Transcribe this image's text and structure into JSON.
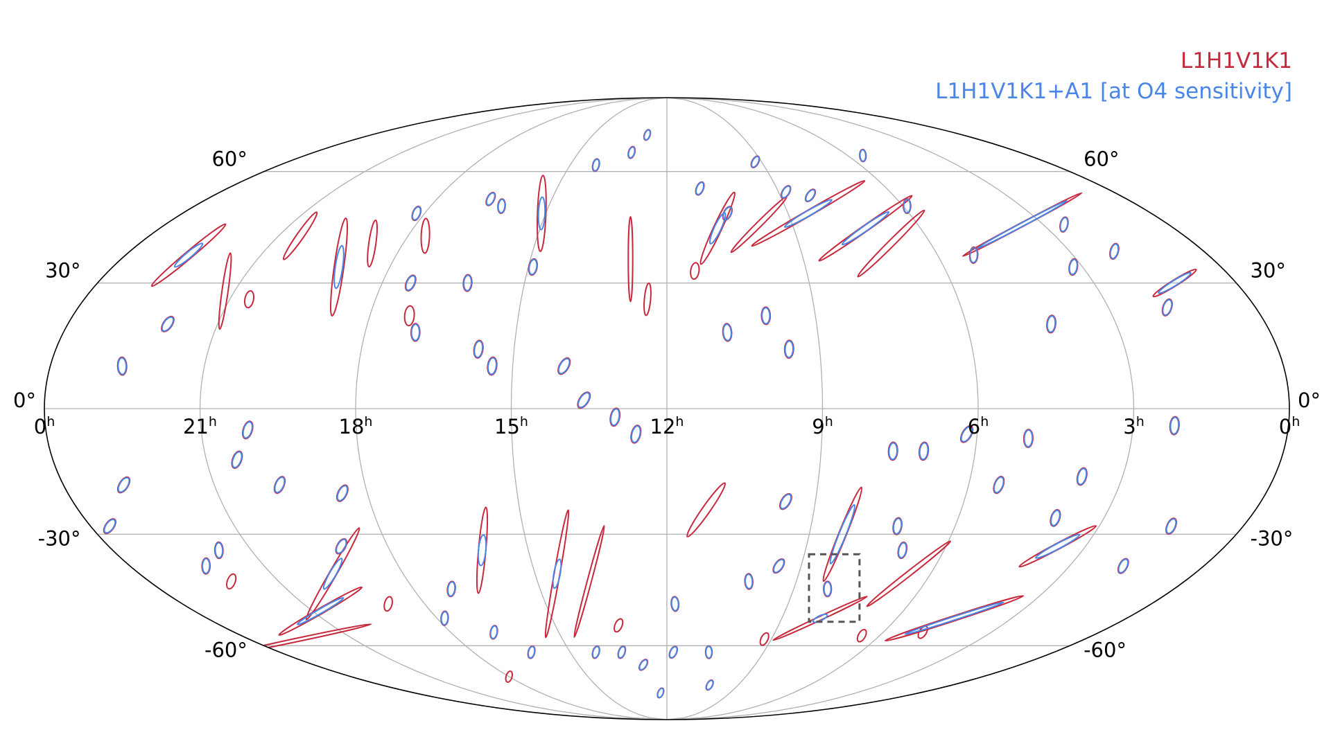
{
  "chart_data": {
    "type": "scatter",
    "projection": "mollweide",
    "title": "",
    "xlabel": "",
    "ylabel": "",
    "legend": {
      "placement": "top-right",
      "entries": [
        {
          "name": "L1H1V1K1",
          "color": "#c8283c"
        },
        {
          "name": "L1H1V1K1+A1 [at O4 sensitivity]",
          "color": "#4a86e8"
        }
      ]
    },
    "grid": true,
    "x_ticks": [
      {
        "hours": 0,
        "label": "0",
        "unit": "h"
      },
      {
        "hours": 3,
        "label": "3",
        "unit": "h"
      },
      {
        "hours": 6,
        "label": "6",
        "unit": "h"
      },
      {
        "hours": 9,
        "label": "9",
        "unit": "h"
      },
      {
        "hours": 12,
        "label": "12",
        "unit": "h"
      },
      {
        "hours": 15,
        "label": "15",
        "unit": "h"
      },
      {
        "hours": 18,
        "label": "18",
        "unit": "h"
      },
      {
        "hours": 21,
        "label": "21",
        "unit": "h"
      },
      {
        "hours": 24,
        "label": "0",
        "unit": "h"
      }
    ],
    "y_ticks": [
      {
        "deg": 60,
        "label": "60°"
      },
      {
        "deg": 30,
        "label": "30°"
      },
      {
        "deg": 0,
        "label": "0°"
      },
      {
        "deg": -30,
        "label": "-30°"
      },
      {
        "deg": -60,
        "label": "-60°"
      }
    ],
    "highlight_box": {
      "ra_hours": [
        6.9,
        8.9
      ],
      "dec_deg": [
        -35,
        -53
      ],
      "style": "dashed"
    },
    "series": [
      {
        "name": "L1H1V1K1",
        "color": "#c8283c",
        "regions": [
          {
            "ra": 22.6,
            "dec": 37,
            "len": 16,
            "wid": 1.0,
            "ang": 40
          },
          {
            "ra": 21.2,
            "dec": 28,
            "len": 12,
            "wid": 0.8,
            "ang": 82
          },
          {
            "ra": 20.5,
            "dec": 42,
            "len": 10,
            "wid": 1.0,
            "ang": 55
          },
          {
            "ra": 19.1,
            "dec": 34,
            "len": 16,
            "wid": 1.3,
            "ang": 82
          },
          {
            "ra": 18.7,
            "dec": 40,
            "len": 8,
            "wid": 1.0,
            "ang": 82
          },
          {
            "ra": 17.6,
            "dec": 42,
            "len": 6,
            "wid": 1.2,
            "ang": 88
          },
          {
            "ra": 17.2,
            "dec": 22,
            "len": 3,
            "wid": 1.2,
            "ang": 85
          },
          {
            "ra": 15.1,
            "dec": 48,
            "len": 14,
            "wid": 1.3,
            "ang": 88
          },
          {
            "ra": 12.8,
            "dec": 36,
            "len": 14,
            "wid": 0.6,
            "ang": 90
          },
          {
            "ra": 12.4,
            "dec": 26,
            "len": 5,
            "wid": 0.8,
            "ang": 85
          },
          {
            "ra": 10.8,
            "dec": 44,
            "len": 14,
            "wid": 1.2,
            "ang": 65
          },
          {
            "ra": 9.8,
            "dec": 45,
            "len": 14,
            "wid": 0.8,
            "ang": 45
          },
          {
            "ra": 8.5,
            "dec": 48,
            "len": 24,
            "wid": 0.9,
            "ang": 30
          },
          {
            "ra": 7.3,
            "dec": 44,
            "len": 20,
            "wid": 0.9,
            "ang": 35
          },
          {
            "ra": 6.9,
            "dec": 40,
            "len": 16,
            "wid": 0.9,
            "ang": 45
          },
          {
            "ra": 3.5,
            "dec": 45,
            "len": 24,
            "wid": 0.6,
            "ang": 28
          },
          {
            "ra": 1.3,
            "dec": 30,
            "len": 8,
            "wid": 0.8,
            "ang": 32
          },
          {
            "ra": 3.6,
            "dec": -33,
            "len": 14,
            "wid": 0.8,
            "ang": 28
          },
          {
            "ra": 4.5,
            "dec": -52,
            "len": 28,
            "wid": 0.8,
            "ang": 18
          },
          {
            "ra": 6.5,
            "dec": -40,
            "len": 18,
            "wid": 0.7,
            "ang": 38
          },
          {
            "ra": 8.0,
            "dec": -52,
            "len": 20,
            "wid": 0.6,
            "ang": 25
          },
          {
            "ra": 11.2,
            "dec": -24,
            "len": 10,
            "wid": 1.0,
            "ang": 55
          },
          {
            "ra": 8.3,
            "dec": -30,
            "len": 16,
            "wid": 1.0,
            "ang": 68
          },
          {
            "ra": 13.8,
            "dec": -42,
            "len": 20,
            "wid": 0.6,
            "ang": 75
          },
          {
            "ra": 14.5,
            "dec": -40,
            "len": 22,
            "wid": 0.8,
            "ang": 80
          },
          {
            "ra": 16.0,
            "dec": -34,
            "len": 14,
            "wid": 1.0,
            "ang": 85
          },
          {
            "ra": 19.6,
            "dec": -40,
            "len": 18,
            "wid": 1.0,
            "ang": 60
          },
          {
            "ra": 20.8,
            "dec": -50,
            "len": 18,
            "wid": 0.9,
            "ang": 30
          },
          {
            "ra": 22.5,
            "dec": -58,
            "len": 30,
            "wid": 0.4,
            "ang": 12
          }
        ],
        "spots": [
          [
            22.0,
            20
          ],
          [
            22.6,
            10
          ],
          [
            17.0,
            18
          ],
          [
            16.2,
            30
          ],
          [
            15.4,
            10
          ],
          [
            14.9,
            34
          ],
          [
            14.2,
            62
          ],
          [
            13.2,
            66
          ],
          [
            12.8,
            72
          ],
          [
            11.1,
            55
          ],
          [
            10.5,
            48
          ],
          [
            9.2,
            63
          ],
          [
            8.8,
            54
          ],
          [
            8.2,
            53
          ],
          [
            5.5,
            65
          ],
          [
            5.9,
            50
          ],
          [
            5.2,
            37
          ],
          [
            4.3,
            20
          ],
          [
            3.2,
            34
          ],
          [
            2.5,
            45
          ],
          [
            2.0,
            38
          ],
          [
            1.8,
            24
          ],
          [
            18.2,
            48
          ],
          [
            17.4,
            30
          ],
          [
            16.6,
            52
          ],
          [
            14.0,
            10
          ],
          [
            13.6,
            2
          ],
          [
            10.8,
            18
          ],
          [
            10.0,
            22
          ],
          [
            9.6,
            14
          ],
          [
            16.2,
            50
          ],
          [
            15.7,
            14
          ],
          [
            13.0,
            -2
          ],
          [
            12.6,
            -6
          ],
          [
            20.1,
            -5
          ],
          [
            20.4,
            -12
          ],
          [
            19.7,
            -18
          ],
          [
            18.5,
            -20
          ],
          [
            19.0,
            -33
          ],
          [
            22.8,
            -18
          ],
          [
            23.6,
            -28
          ],
          [
            21.7,
            -34
          ],
          [
            22.3,
            -38
          ],
          [
            17.8,
            -52
          ],
          [
            17.1,
            -44
          ],
          [
            16.8,
            -56
          ],
          [
            16.2,
            -62
          ],
          [
            14.2,
            -62
          ],
          [
            13.4,
            -62
          ],
          [
            12.3,
            -76
          ],
          [
            11.8,
            -62
          ],
          [
            10.2,
            -73
          ],
          [
            9.6,
            -22
          ],
          [
            9.5,
            -38
          ],
          [
            10.1,
            -42
          ],
          [
            8.2,
            -44
          ],
          [
            7.6,
            -10
          ],
          [
            7.0,
            -10
          ],
          [
            7.2,
            -28
          ],
          [
            6.9,
            -34
          ],
          [
            3.8,
            -16
          ],
          [
            4.0,
            -26
          ],
          [
            5.4,
            -18
          ],
          [
            1.5,
            -28
          ],
          [
            1.8,
            -38
          ],
          [
            6.2,
            -6
          ],
          [
            12.8,
            -66
          ],
          [
            11.8,
            -48
          ],
          [
            10.7,
            -62
          ],
          [
            5.0,
            -7
          ],
          [
            2.2,
            -4
          ],
          [
            11.4,
            33
          ],
          [
            20.6,
            26
          ],
          [
            18.9,
            -48
          ],
          [
            18.0,
            -70
          ],
          [
            22.1,
            -42
          ],
          [
            13.3,
            -54
          ],
          [
            9.2,
            -58
          ],
          [
            6.5,
            -57
          ],
          [
            4.9,
            -56
          ]
        ]
      },
      {
        "name": "L1H1V1K1+A1 [at O4 sensitivity]",
        "color": "#4a86e8",
        "regions": [
          {
            "ra": 22.6,
            "dec": 37,
            "len": 6,
            "wid": 0.8,
            "ang": 40
          },
          {
            "ra": 19.1,
            "dec": 34,
            "len": 7,
            "wid": 1.0,
            "ang": 82
          },
          {
            "ra": 15.1,
            "dec": 48,
            "len": 6,
            "wid": 1.0,
            "ang": 88
          },
          {
            "ra": 10.8,
            "dec": 44,
            "len": 6,
            "wid": 1.0,
            "ang": 65
          },
          {
            "ra": 8.5,
            "dec": 48,
            "len": 10,
            "wid": 0.8,
            "ang": 30
          },
          {
            "ra": 7.3,
            "dec": 44,
            "len": 10,
            "wid": 0.8,
            "ang": 35
          },
          {
            "ra": 3.5,
            "dec": 45,
            "len": 18,
            "wid": 0.5,
            "ang": 28
          },
          {
            "ra": 1.3,
            "dec": 30,
            "len": 6,
            "wid": 0.7,
            "ang": 32
          },
          {
            "ra": 3.6,
            "dec": -33,
            "len": 8,
            "wid": 0.7,
            "ang": 28
          },
          {
            "ra": 4.5,
            "dec": -52,
            "len": 20,
            "wid": 0.5,
            "ang": 18
          },
          {
            "ra": 8.0,
            "dec": -52,
            "len": 3,
            "wid": 0.8,
            "ang": 25
          },
          {
            "ra": 8.3,
            "dec": -30,
            "len": 10,
            "wid": 0.9,
            "ang": 68
          },
          {
            "ra": 14.5,
            "dec": -40,
            "len": 5,
            "wid": 0.9,
            "ang": 80
          },
          {
            "ra": 16.0,
            "dec": -34,
            "len": 5,
            "wid": 1.0,
            "ang": 85
          },
          {
            "ra": 19.6,
            "dec": -40,
            "len": 6,
            "wid": 0.9,
            "ang": 60
          },
          {
            "ra": 20.8,
            "dec": -50,
            "len": 10,
            "wid": 0.7,
            "ang": 30
          }
        ],
        "spots": [
          [
            22.0,
            20
          ],
          [
            22.6,
            10
          ],
          [
            17.0,
            18
          ],
          [
            16.2,
            30
          ],
          [
            15.4,
            10
          ],
          [
            14.9,
            34
          ],
          [
            14.2,
            62
          ],
          [
            13.2,
            66
          ],
          [
            12.8,
            72
          ],
          [
            11.1,
            55
          ],
          [
            10.5,
            48
          ],
          [
            9.2,
            63
          ],
          [
            8.8,
            54
          ],
          [
            8.2,
            53
          ],
          [
            5.5,
            65
          ],
          [
            5.9,
            50
          ],
          [
            5.2,
            37
          ],
          [
            4.3,
            20
          ],
          [
            3.2,
            34
          ],
          [
            2.5,
            45
          ],
          [
            2.0,
            38
          ],
          [
            1.8,
            24
          ],
          [
            18.2,
            48
          ],
          [
            17.4,
            30
          ],
          [
            16.6,
            52
          ],
          [
            14.0,
            10
          ],
          [
            13.6,
            2
          ],
          [
            10.8,
            18
          ],
          [
            10.0,
            22
          ],
          [
            9.6,
            14
          ],
          [
            16.2,
            50
          ],
          [
            15.7,
            14
          ],
          [
            13.0,
            -2
          ],
          [
            12.6,
            -6
          ],
          [
            20.1,
            -5
          ],
          [
            20.4,
            -12
          ],
          [
            19.7,
            -18
          ],
          [
            18.5,
            -20
          ],
          [
            19.0,
            -33
          ],
          [
            22.8,
            -18
          ],
          [
            23.6,
            -28
          ],
          [
            21.7,
            -34
          ],
          [
            22.3,
            -38
          ],
          [
            17.8,
            -52
          ],
          [
            17.1,
            -44
          ],
          [
            16.8,
            -56
          ],
          [
            16.2,
            -62
          ],
          [
            14.2,
            -62
          ],
          [
            13.4,
            -62
          ],
          [
            12.3,
            -76
          ],
          [
            11.8,
            -62
          ],
          [
            10.2,
            -73
          ],
          [
            9.6,
            -22
          ],
          [
            9.5,
            -38
          ],
          [
            10.1,
            -42
          ],
          [
            8.2,
            -44
          ],
          [
            7.6,
            -10
          ],
          [
            7.0,
            -10
          ],
          [
            7.2,
            -28
          ],
          [
            6.9,
            -34
          ],
          [
            3.8,
            -16
          ],
          [
            4.0,
            -26
          ],
          [
            5.4,
            -18
          ],
          [
            1.5,
            -28
          ],
          [
            1.8,
            -38
          ],
          [
            6.2,
            -6
          ],
          [
            12.8,
            -66
          ],
          [
            11.8,
            -48
          ],
          [
            10.7,
            -62
          ],
          [
            5.0,
            -7
          ],
          [
            2.2,
            -4
          ]
        ]
      }
    ]
  }
}
